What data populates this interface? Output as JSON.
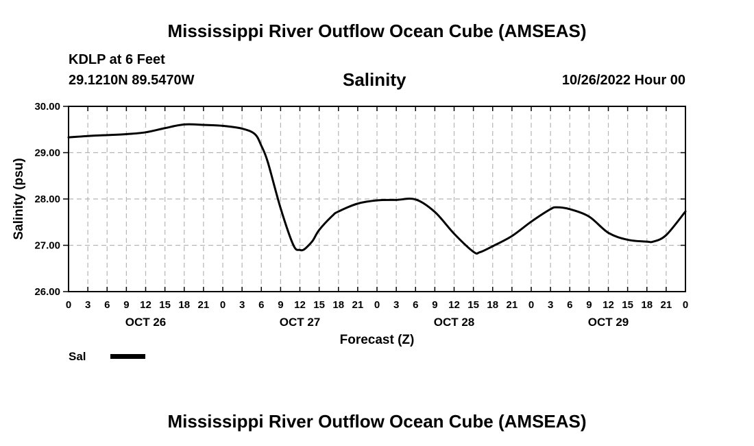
{
  "main_title": "Mississippi River Outflow Ocean Cube (AMSEAS)",
  "station": "KDLP at 6 Feet",
  "coords": "29.1210N  89.5470W",
  "chart_title": "Salinity",
  "datetime": "10/26/2022 Hour 00",
  "bottom_title": "Mississippi River Outflow Ocean Cube (AMSEAS)",
  "legend_label": "Sal",
  "chart_data": {
    "type": "line",
    "title": "Salinity",
    "xlabel": "Forecast (Z)",
    "ylabel": "Salinity (psu)",
    "xlim": [
      0,
      96
    ],
    "ylim": [
      26,
      30
    ],
    "grid": true,
    "yticks": [
      "30.00",
      "29.00",
      "28.00",
      "27.00",
      "26.00"
    ],
    "ytick_values": [
      30,
      29,
      28,
      27,
      26
    ],
    "xtick_hours": [
      0,
      3,
      6,
      9,
      12,
      15,
      18,
      21,
      24,
      27,
      30,
      33,
      36,
      39,
      42,
      45,
      48,
      51,
      54,
      57,
      60,
      63,
      66,
      69,
      72,
      75,
      78,
      81,
      84,
      87,
      90,
      93,
      96
    ],
    "xtick_labels": [
      "0",
      "3",
      "6",
      "9",
      "12",
      "15",
      "18",
      "21",
      "0",
      "3",
      "6",
      "9",
      "12",
      "15",
      "18",
      "21",
      "0",
      "3",
      "6",
      "9",
      "12",
      "15",
      "18",
      "21",
      "0",
      "3",
      "6",
      "9",
      "12",
      "15",
      "18",
      "21",
      "0"
    ],
    "day_labels": [
      {
        "hour": 12,
        "label": "OCT 26"
      },
      {
        "hour": 36,
        "label": "OCT 27"
      },
      {
        "hour": 60,
        "label": "OCT 28"
      },
      {
        "hour": 84,
        "label": "OCT 29"
      }
    ],
    "legend": [
      {
        "name": "Sal",
        "color": "#000000"
      }
    ],
    "series": [
      {
        "name": "Sal",
        "color": "#000000",
        "x": [
          0,
          3,
          6,
          9,
          12,
          15,
          18,
          21,
          24,
          27,
          29,
          30,
          31,
          33,
          35,
          36,
          36.5,
          37,
          38,
          39,
          41,
          42,
          45,
          48,
          51,
          54,
          57,
          60,
          63,
          64,
          66,
          69,
          72,
          75,
          76,
          78,
          81,
          84,
          87,
          90,
          91,
          93,
          96
        ],
        "values": [
          29.33,
          29.36,
          29.38,
          29.4,
          29.44,
          29.53,
          29.61,
          29.6,
          29.58,
          29.52,
          29.4,
          29.15,
          28.8,
          27.8,
          27.0,
          26.9,
          26.9,
          26.95,
          27.1,
          27.33,
          27.63,
          27.73,
          27.9,
          27.97,
          27.98,
          27.99,
          27.72,
          27.25,
          26.86,
          26.85,
          26.98,
          27.2,
          27.51,
          27.78,
          27.82,
          27.78,
          27.62,
          27.27,
          27.12,
          27.08,
          27.08,
          27.22,
          27.73
        ]
      }
    ]
  }
}
